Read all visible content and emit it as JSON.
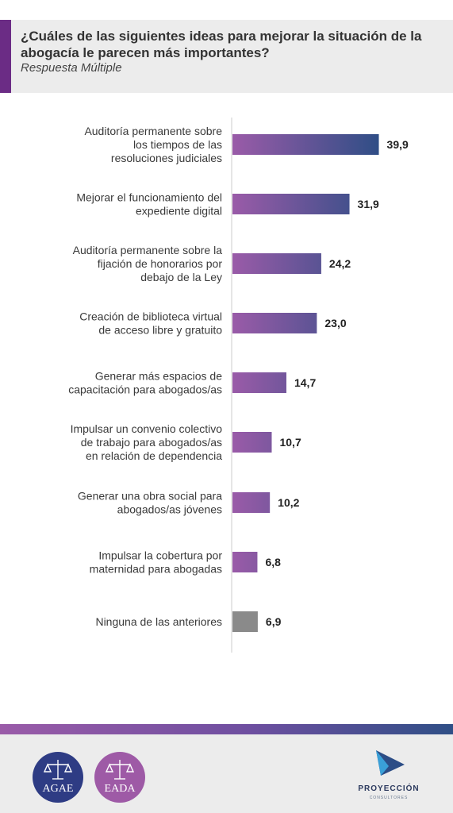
{
  "header": {
    "title": "¿Cuáles de las siguientes ideas para mejorar la situación de la abogacía le parecen más importantes?",
    "subtitle": "Respuesta Múltiple"
  },
  "chart_data": {
    "type": "bar",
    "orientation": "horizontal",
    "categories": [
      [
        "Auditoría permanente sobre",
        "los tiempos de las",
        "resoluciones judiciales"
      ],
      [
        "Mejorar el funcionamiento del",
        "expediente digital"
      ],
      [
        "Auditoría permanente sobre la",
        "fijación de honorarios por",
        "debajo de la Ley"
      ],
      [
        "Creación de biblioteca virtual",
        "de acceso libre y gratuito"
      ],
      [
        "Generar más espacios de",
        "capacitación para abogados/as"
      ],
      [
        "Impulsar un convenio colectivo",
        "de trabajo para abogados/as",
        "en relación de dependencia"
      ],
      [
        "Generar una obra social para",
        "abogados/as jóvenes"
      ],
      [
        "Impulsar la cobertura por",
        "maternidad para abogadas"
      ],
      [
        "Ninguna de las anteriores"
      ]
    ],
    "values": [
      39.9,
      31.9,
      24.2,
      23.0,
      14.7,
      10.7,
      10.2,
      6.8,
      6.9
    ],
    "value_labels": [
      "39,9",
      "31,9",
      "24,2",
      "23,0",
      "14,7",
      "10,7",
      "10,2",
      "6,8",
      "6,9"
    ],
    "colors": {
      "gradient_start": "#9a5ba8",
      "gradient_end": "#2f4e86",
      "none_bar": "#8a8a8a",
      "axis": "#cccccc"
    },
    "xlim": [
      0,
      40
    ],
    "grid": false,
    "legend": "none"
  },
  "footer": {
    "logos": [
      {
        "name": "AGAE",
        "color": "#2e3c84",
        "icon": "scales-icon"
      },
      {
        "name": "EADA",
        "color": "#9e5aa6",
        "icon": "scales-icon"
      }
    ],
    "brand": {
      "name": "PROYECCIÓN",
      "subtitle": "CONSULTORES",
      "icon": "arrow-logo-icon"
    }
  }
}
